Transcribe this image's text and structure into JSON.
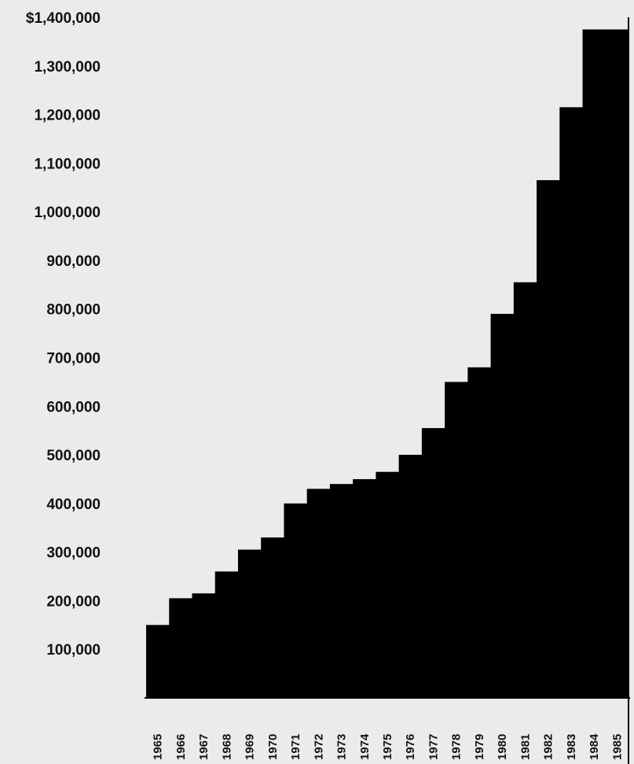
{
  "chart_data": {
    "type": "bar",
    "title": "",
    "xlabel": "",
    "ylabel": "",
    "categories": [
      "1965",
      "1966",
      "1967",
      "1968",
      "1969",
      "1970",
      "1971",
      "1972",
      "1973",
      "1974",
      "1975",
      "1976",
      "1977",
      "1978",
      "1979",
      "1980",
      "1981",
      "1982",
      "1983",
      "1984",
      "1985"
    ],
    "values": [
      150000,
      205000,
      215000,
      260000,
      305000,
      330000,
      400000,
      430000,
      440000,
      450000,
      465000,
      500000,
      555000,
      650000,
      680000,
      790000,
      855000,
      1065000,
      1215000,
      1375000,
      1375000
    ],
    "yticks": [
      {
        "value": 1400000,
        "label": "$1,400,000"
      },
      {
        "value": 1300000,
        "label": "1,300,000"
      },
      {
        "value": 1200000,
        "label": "1,200,000"
      },
      {
        "value": 1100000,
        "label": "1,100,000"
      },
      {
        "value": 1000000,
        "label": "1,000,000"
      },
      {
        "value": 900000,
        "label": "900,000"
      },
      {
        "value": 800000,
        "label": "800,000"
      },
      {
        "value": 700000,
        "label": "700,000"
      },
      {
        "value": 600000,
        "label": "600,000"
      },
      {
        "value": 500000,
        "label": "500,000"
      },
      {
        "value": 400000,
        "label": "400,000"
      },
      {
        "value": 300000,
        "label": "300,000"
      },
      {
        "value": 200000,
        "label": "200,000"
      },
      {
        "value": 100000,
        "label": "100,000"
      }
    ],
    "ylim": [
      0,
      1400000
    ],
    "grid": false,
    "legend": "none",
    "bar_color": "#000000",
    "background_color": "#ebebeb"
  }
}
